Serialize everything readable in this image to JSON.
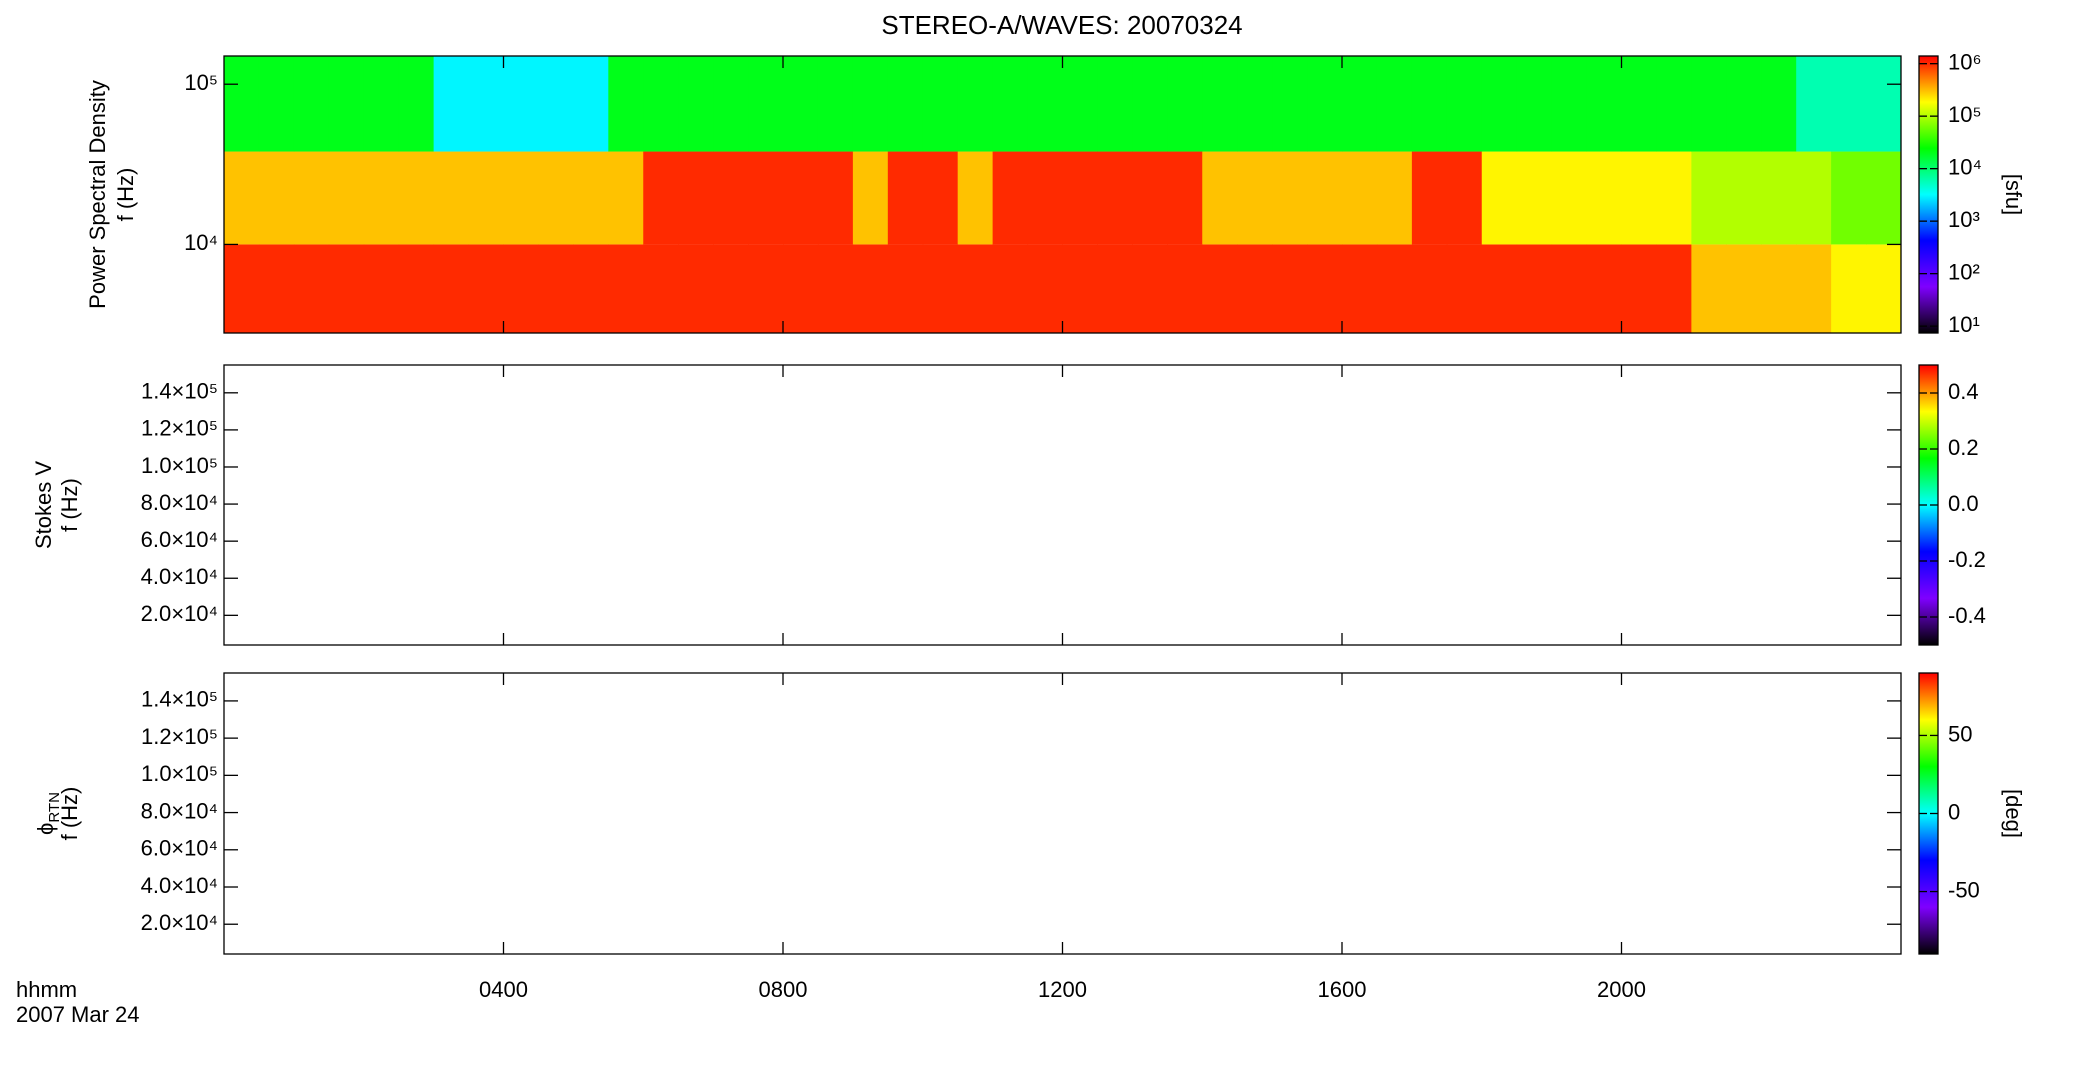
{
  "figure": {
    "title": "STEREO-A/WAVES: 20070324",
    "time_label": "hhmm",
    "date_label": "2007 Mar 24"
  },
  "chart_data": [
    {
      "type": "heatmap",
      "y_label": [
        "Power Spectral Density",
        "f (Hz)"
      ],
      "xlim": [
        0,
        24
      ],
      "xticks": [
        {
          "value": 4,
          "label": "0400"
        },
        {
          "value": 8,
          "label": "0800"
        },
        {
          "value": 12,
          "label": "1200"
        },
        {
          "value": 16,
          "label": "1600"
        },
        {
          "value": 20,
          "label": "2000"
        }
      ],
      "xtick_labels": false,
      "ylim": [
        2800,
        150000
      ],
      "ylog": true,
      "yticks": [
        {
          "value": 10000,
          "label": "10⁴"
        },
        {
          "value": 100000,
          "label": "10⁵"
        }
      ],
      "xbins": [
        0,
        0.5,
        1,
        1.5,
        2,
        2.5,
        3,
        3.5,
        4,
        4.5,
        5,
        5.5,
        6,
        6.5,
        7,
        7.5,
        8,
        8.5,
        9,
        9.5,
        10,
        10.5,
        11,
        11.5,
        12,
        12.5,
        13,
        13.5,
        14,
        14.5,
        15,
        15.5,
        16,
        16.5,
        17,
        17.5,
        18,
        18.5,
        19,
        19.5,
        20,
        20.5,
        21,
        21.5,
        22,
        22.5,
        23,
        23.5,
        24
      ],
      "ybins": [
        2800,
        10000,
        38000,
        150000
      ],
      "z": [
        [
          1000000,
          1000000,
          1000000,
          1000000,
          1000000,
          1000000,
          1000000,
          1000000,
          1000000,
          1000000,
          1000000,
          1000000,
          1000000,
          1000000,
          1000000,
          1000000,
          1000000,
          1000000,
          1000000,
          1000000,
          1000000,
          1000000,
          1000000,
          1000000,
          1000000,
          1000000,
          1000000,
          1000000,
          1000000,
          1000000,
          1000000,
          1000000,
          1000000,
          1000000,
          1000000,
          1000000,
          1000000,
          1000000,
          1000000,
          1000000,
          1000000,
          1000000,
          300000,
          300000,
          300000,
          300000,
          200000,
          200000
        ],
        [
          300000,
          300000,
          300000,
          300000,
          300000,
          300000,
          300000,
          300000,
          300000,
          300000,
          300000,
          300000,
          1000000,
          1000000,
          1000000,
          1000000,
          1000000,
          1000000,
          300000,
          1000000,
          1000000,
          300000,
          1000000,
          1000000,
          1000000,
          1000000,
          1000000,
          1000000,
          300000,
          300000,
          300000,
          300000,
          300000,
          300000,
          1000000,
          1000000,
          200000,
          200000,
          200000,
          200000,
          200000,
          200000,
          100000,
          100000,
          100000,
          100000,
          60000,
          60000
        ],
        [
          20000,
          20000,
          20000,
          20000,
          20000,
          20000,
          3000,
          3000,
          3000,
          3000,
          3000,
          20000,
          20000,
          20000,
          20000,
          20000,
          20000,
          20000,
          20000,
          20000,
          20000,
          20000,
          20000,
          20000,
          20000,
          20000,
          20000,
          20000,
          20000,
          20000,
          20000,
          20000,
          20000,
          20000,
          20000,
          20000,
          20000,
          20000,
          20000,
          20000,
          20000,
          20000,
          20000,
          20000,
          20000,
          6000,
          6000,
          6000
        ]
      ],
      "clim": [
        7.4,
        1400000
      ],
      "clog": true,
      "colorscale": [
        "#000000",
        "#7f00ff",
        "#0000ff",
        "#00ffff",
        "#00ff00",
        "#ffff00",
        "#ff0000"
      ],
      "cticks": [
        {
          "value": 10,
          "label": "10¹"
        },
        {
          "value": 100,
          "label": "10²"
        },
        {
          "value": 1000,
          "label": "10³"
        },
        {
          "value": 10000,
          "label": "10⁴"
        },
        {
          "value": 100000,
          "label": "10⁵"
        },
        {
          "value": 1000000,
          "label": "10⁶"
        }
      ],
      "c_label": "[sfu]"
    },
    {
      "type": "heatmap",
      "y_label": [
        "Stokes V",
        "f (Hz)"
      ],
      "xlim": [
        0,
        24
      ],
      "xticks": [
        {
          "value": 4,
          "label": "0400"
        },
        {
          "value": 8,
          "label": "0800"
        },
        {
          "value": 12,
          "label": "1200"
        },
        {
          "value": 16,
          "label": "1600"
        },
        {
          "value": 20,
          "label": "2000"
        }
      ],
      "xtick_labels": false,
      "ylim": [
        4000,
        155000
      ],
      "ylog": false,
      "yticks": [
        {
          "value": 20000,
          "label": "2.0×10⁴"
        },
        {
          "value": 40000,
          "label": "4.0×10⁴"
        },
        {
          "value": 60000,
          "label": "6.0×10⁴"
        },
        {
          "value": 80000,
          "label": "8.0×10⁴"
        },
        {
          "value": 100000,
          "label": "1.0×10⁵"
        },
        {
          "value": 120000,
          "label": "1.2×10⁵"
        },
        {
          "value": 140000,
          "label": "1.4×10⁵"
        }
      ],
      "clim": [
        -0.5,
        0.5
      ],
      "clog": false,
      "colorscale": [
        "#000000",
        "#7f00ff",
        "#0000ff",
        "#00ffff",
        "#00ff00",
        "#ffff00",
        "#ff0000"
      ],
      "cticks": [
        -0.4,
        -0.2,
        {
          "value": 0,
          "label": "0.0"
        },
        0.2,
        0.4
      ]
    },
    {
      "type": "heatmap",
      "y_label": [
        "ϕ",
        "f (Hz)"
      ],
      "y_label_sub": "RTN",
      "xlim": [
        0,
        24
      ],
      "xticks": [
        {
          "value": 4,
          "label": "0400"
        },
        {
          "value": 8,
          "label": "0800"
        },
        {
          "value": 12,
          "label": "1200"
        },
        {
          "value": 16,
          "label": "1600"
        },
        {
          "value": 20,
          "label": "2000"
        }
      ],
      "xtick_labels": true,
      "ylim": [
        4000,
        155000
      ],
      "ylog": false,
      "yticks": [
        {
          "value": 20000,
          "label": "2.0×10⁴"
        },
        {
          "value": 40000,
          "label": "4.0×10⁴"
        },
        {
          "value": 60000,
          "label": "6.0×10⁴"
        },
        {
          "value": 80000,
          "label": "8.0×10⁴"
        },
        {
          "value": 100000,
          "label": "1.0×10⁵"
        },
        {
          "value": 120000,
          "label": "1.2×10⁵"
        },
        {
          "value": 140000,
          "label": "1.4×10⁵"
        }
      ],
      "clim": [
        -90,
        90
      ],
      "clog": false,
      "colorscale": [
        "#000000",
        "#7f00ff",
        "#0000ff",
        "#00ffff",
        "#00ff00",
        "#ffff00",
        "#ff0000"
      ],
      "cticks": [
        -50,
        0,
        50
      ],
      "c_label": "[deg]"
    }
  ]
}
